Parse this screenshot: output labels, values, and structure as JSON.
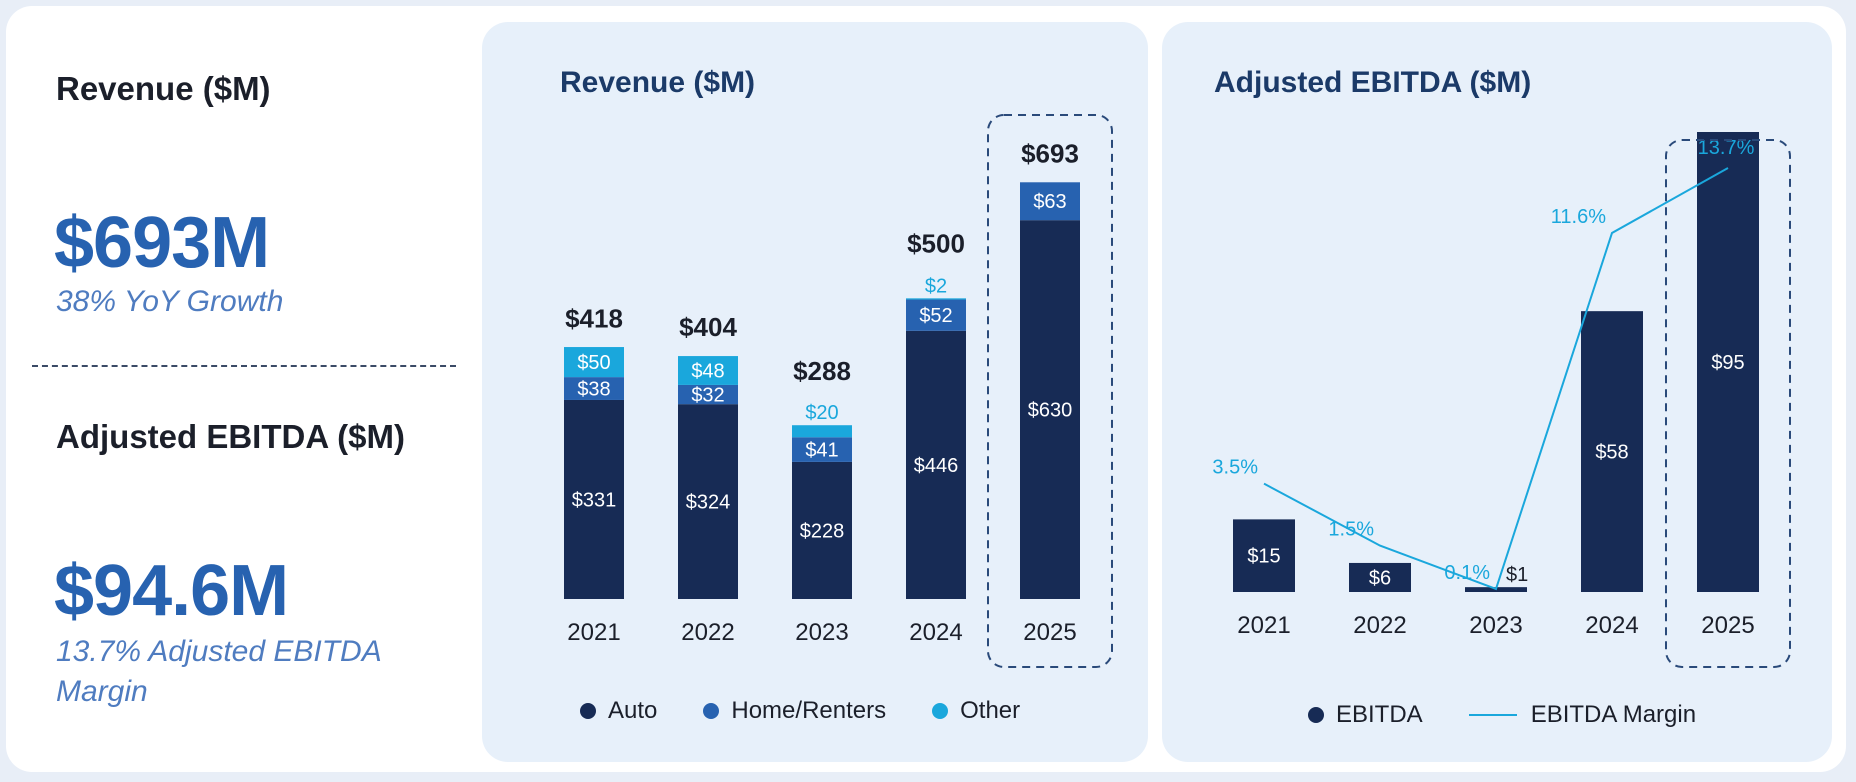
{
  "summary": {
    "revenue_label": "Revenue ($M)",
    "revenue_value": "$693M",
    "revenue_sub": "38% YoY Growth",
    "ebitda_label": "Adjusted EBITDA ($M)",
    "ebitda_value": "$94.6M",
    "ebitda_sub": "13.7% Adjusted EBITDA Margin"
  },
  "colors": {
    "auto": "#172b55",
    "home_renters": "#2762b0",
    "other": "#1aa7dc",
    "ebitda": "#172b55",
    "margin_line": "#1aa7dc",
    "accent_text": "#2762b0"
  },
  "chart_data": [
    {
      "type": "bar",
      "title": "Revenue ($M)",
      "categories": [
        "2021",
        "2022",
        "2023",
        "2024",
        "2025"
      ],
      "series": [
        {
          "name": "Auto",
          "values": [
            331,
            324,
            228,
            446,
            630
          ],
          "labels": [
            "$331",
            "$324",
            "$228",
            "$446",
            "$630"
          ]
        },
        {
          "name": "Home/Renters",
          "values": [
            38,
            32,
            41,
            52,
            63
          ],
          "labels": [
            "$38",
            "$32",
            "$41",
            "$52",
            "$63"
          ]
        },
        {
          "name": "Other",
          "values": [
            50,
            48,
            20,
            2,
            0
          ],
          "labels": [
            "$50",
            "$48",
            "$20",
            "$2",
            ""
          ]
        }
      ],
      "totals": [
        418,
        404,
        288,
        500,
        693
      ],
      "total_labels": [
        "$418",
        "$404",
        "$288",
        "$500",
        "$693"
      ],
      "highlighted": "2025",
      "ylim": [
        0,
        760
      ],
      "legend": "bottom"
    },
    {
      "type": "bar",
      "title": "Adjusted EBITDA ($M)",
      "categories": [
        "2021",
        "2022",
        "2023",
        "2024",
        "2025"
      ],
      "series": [
        {
          "name": "EBITDA",
          "values": [
            15,
            6,
            1,
            58,
            95
          ],
          "labels": [
            "$15",
            "$6",
            "$1",
            "$58",
            "$95"
          ]
        },
        {
          "name": "EBITDA Margin",
          "type": "line",
          "values": [
            3.5,
            1.5,
            0.1,
            11.6,
            13.7
          ],
          "labels": [
            "3.5%",
            "1.5%",
            "0.1%",
            "11.6%",
            "13.7%"
          ]
        }
      ],
      "highlighted": "2025",
      "ylim": [
        0,
        95
      ],
      "y2lim": [
        0,
        13.7
      ],
      "legend": "bottom"
    }
  ]
}
